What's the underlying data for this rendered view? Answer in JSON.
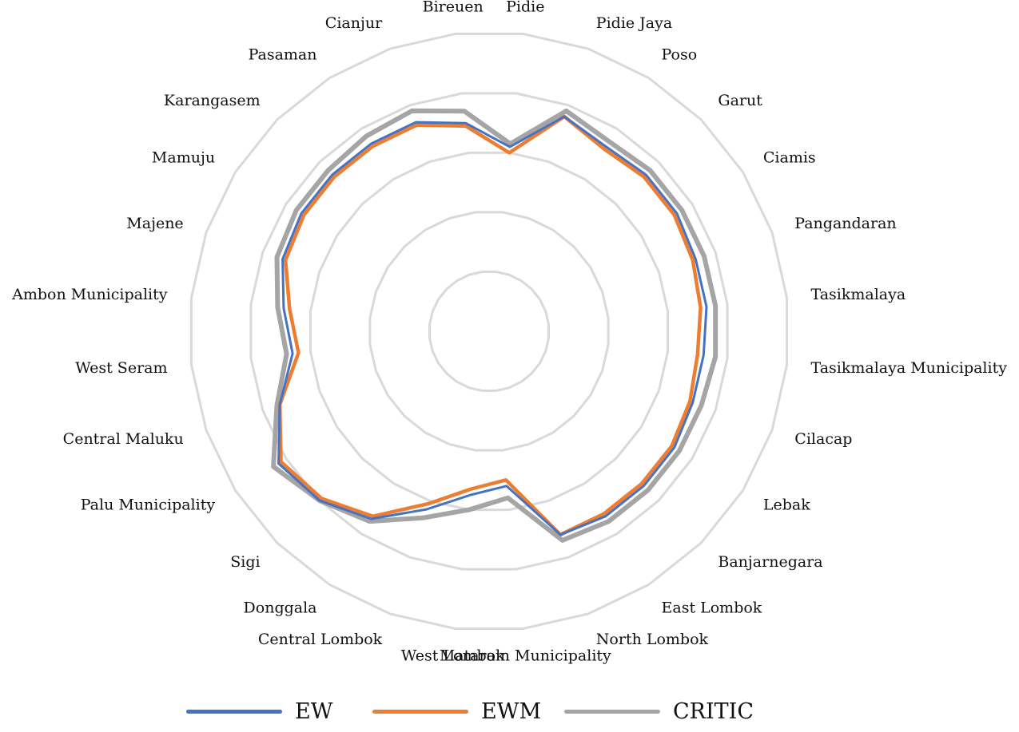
{
  "chart_data": {
    "type": "radar",
    "title": "",
    "categories": [
      "Pidie",
      "Pidie Jaya",
      "Poso",
      "Garut",
      "Ciamis",
      "Pangandaran",
      "Tasikmalaya",
      "Tasikmalaya Municipality",
      "Cilacap",
      "Lebak",
      "Banjarnegara",
      "East Lombok",
      "North Lombok",
      "Mataram Municipality",
      "West Lombok",
      "Central Lombok",
      "Donggala",
      "Sigi",
      "Palu Municipality",
      "Central Maluku",
      "West Seram",
      "Ambon Municipality",
      "Majene",
      "Mamuju",
      "Karangasem",
      "Pasaman",
      "Cianjur",
      "Bireuen"
    ],
    "rings": 5,
    "series": [
      {
        "name": "EW",
        "color": "#4472C4",
        "values": [
          0.62,
          0.76,
          0.73,
          0.74,
          0.74,
          0.73,
          0.73,
          0.72,
          0.72,
          0.73,
          0.73,
          0.73,
          0.72,
          0.52,
          0.55,
          0.63,
          0.74,
          0.8,
          0.83,
          0.74,
          0.66,
          0.69,
          0.73,
          0.74,
          0.74,
          0.74,
          0.74,
          0.7
        ]
      },
      {
        "name": "EWM",
        "color": "#ED7D31",
        "values": [
          0.6,
          0.76,
          0.72,
          0.73,
          0.73,
          0.72,
          0.71,
          0.7,
          0.71,
          0.72,
          0.72,
          0.72,
          0.72,
          0.5,
          0.53,
          0.61,
          0.73,
          0.79,
          0.82,
          0.74,
          0.64,
          0.67,
          0.72,
          0.73,
          0.73,
          0.73,
          0.73,
          0.69
        ]
      },
      {
        "name": "CRITIC",
        "color": "#A5A5A5",
        "values": [
          0.63,
          0.78,
          0.75,
          0.76,
          0.76,
          0.76,
          0.76,
          0.76,
          0.75,
          0.75,
          0.75,
          0.75,
          0.74,
          0.56,
          0.6,
          0.66,
          0.75,
          0.8,
          0.85,
          0.75,
          0.68,
          0.71,
          0.75,
          0.76,
          0.76,
          0.77,
          0.78,
          0.74
        ]
      }
    ],
    "legend_position": "bottom"
  }
}
